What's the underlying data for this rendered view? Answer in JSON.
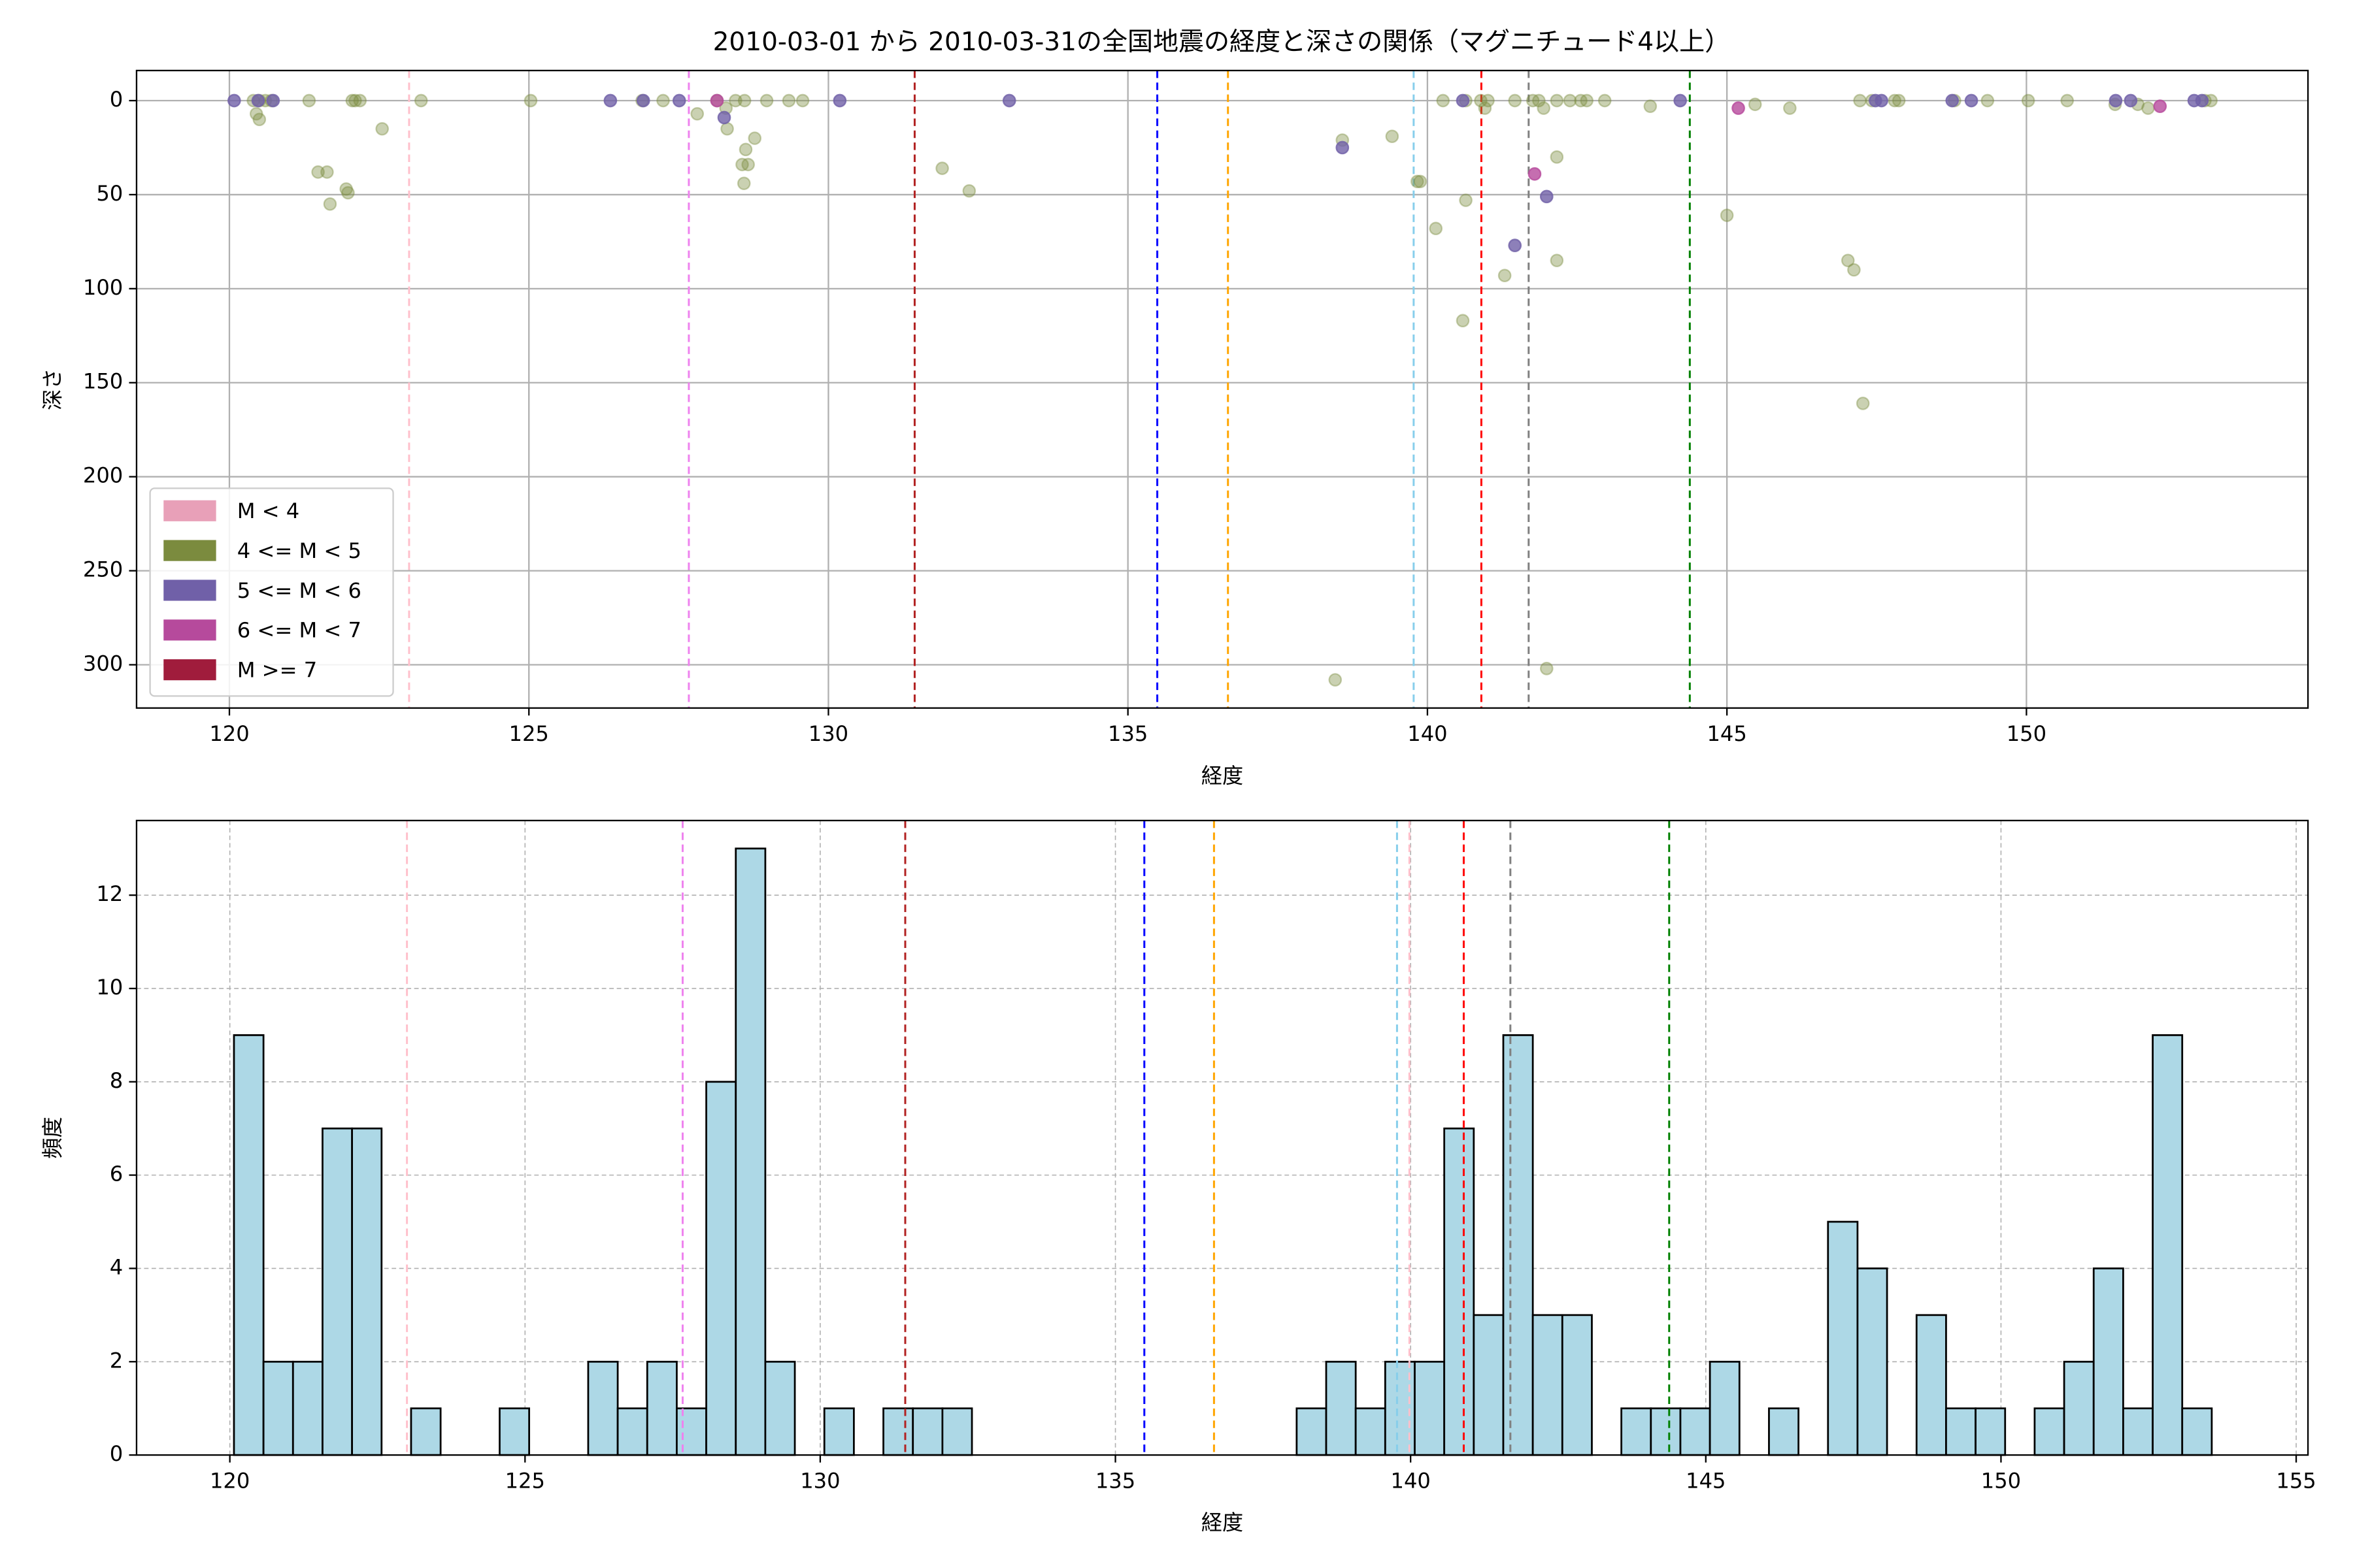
{
  "chart_data": [
    {
      "type": "scatter",
      "title": "2010-03-01 から 2010-03-31の全国地震の経度と深さの関係（マグニチュード4以上）",
      "xlabel": "経度",
      "ylabel": "深さ",
      "xlim": [
        118.45,
        154.7
      ],
      "ylim": [
        323,
        -16
      ],
      "xticks": [
        120,
        125,
        130,
        135,
        140,
        145,
        150
      ],
      "yticks": [
        0,
        50,
        100,
        150,
        200,
        250,
        300
      ],
      "grid": true,
      "legend": "lower left",
      "vlines": [
        {
          "x": 123.0,
          "color": "pink"
        },
        {
          "x": 127.67,
          "color": "violet"
        },
        {
          "x": 131.44,
          "color": "#b22222"
        },
        {
          "x": 135.49,
          "color": "blue"
        },
        {
          "x": 136.67,
          "color": "orange"
        },
        {
          "x": 139.77,
          "color": "skyblue"
        },
        {
          "x": 140.9,
          "color": "red"
        },
        {
          "x": 141.69,
          "color": "gray"
        },
        {
          "x": 144.38,
          "color": "green"
        }
      ],
      "series": [
        {
          "name": "M < 4",
          "color": "#e8a0b8",
          "alpha": 0.8,
          "x": [],
          "y": []
        },
        {
          "name": "4 <= M < 5",
          "color": "#7b8b3e",
          "alpha": 0.4,
          "x": [
            120.4,
            120.5,
            120.6,
            120.7,
            120.45,
            120.5,
            121.33,
            121.48,
            121.63,
            121.68,
            121.95,
            121.98,
            122.05,
            122.1,
            122.18,
            122.55,
            123.2,
            125.03,
            126.89,
            127.24,
            127.81,
            128.14,
            128.29,
            128.31,
            128.45,
            128.6,
            128.56,
            128.62,
            128.66,
            128.59,
            128.77,
            128.97,
            129.34,
            129.57,
            131.9,
            132.35,
            138.58,
            138.46,
            139.41,
            139.83,
            139.88,
            140.14,
            140.26,
            140.59,
            140.64,
            140.64,
            140.89,
            140.96,
            141.01,
            141.29,
            141.46,
            141.76,
            141.86,
            141.94,
            141.99,
            142.16,
            142.16,
            142.16,
            142.38,
            142.56,
            142.66,
            142.96,
            143.72,
            145.0,
            145.47,
            146.05,
            147.02,
            147.12,
            147.22,
            147.27,
            147.42,
            147.8,
            147.87,
            148.8,
            149.35,
            150.03,
            150.68,
            151.48,
            151.86,
            152.03,
            152.98,
            153.08
          ],
          "y": [
            0,
            0,
            0,
            0,
            7,
            10,
            0,
            38,
            38,
            55,
            47,
            49,
            0,
            0,
            0,
            15,
            0,
            0,
            0,
            0,
            7,
            0,
            4,
            15,
            0,
            0,
            34,
            26,
            34,
            44,
            20,
            0,
            0,
            0,
            36,
            48,
            21,
            308,
            19,
            43,
            43,
            68,
            0,
            117,
            53,
            0,
            0,
            4,
            0,
            93,
            0,
            0,
            0,
            4,
            302,
            30,
            85,
            0,
            0,
            0,
            0,
            0,
            3,
            61,
            2,
            4,
            85,
            90,
            0,
            161,
            0,
            0,
            0,
            0,
            0,
            0,
            0,
            2,
            2,
            4,
            0,
            0
          ]
        },
        {
          "name": "5 <= M < 6",
          "color": "#7060a8",
          "alpha": 0.8,
          "x": [
            120.08,
            120.48,
            120.73,
            126.36,
            126.91,
            127.51,
            128.26,
            130.19,
            133.02,
            138.58,
            140.59,
            141.46,
            141.99,
            144.22,
            147.48,
            147.58,
            148.76,
            149.08,
            151.49,
            151.74,
            152.8,
            152.93
          ],
          "y": [
            0,
            0,
            0,
            0,
            0,
            0,
            9,
            0,
            0,
            25,
            0,
            77,
            51,
            0,
            0,
            0,
            0,
            0,
            0,
            0,
            0,
            0
          ]
        },
        {
          "name": "6 <= M < 7",
          "color": "#b64a9c",
          "alpha": 0.8,
          "x": [
            128.14,
            141.79,
            145.19,
            152.23
          ],
          "y": [
            0,
            39,
            4,
            3
          ]
        },
        {
          "name": "M >= 7",
          "color": "#a01c3c",
          "alpha": 0.8,
          "x": [],
          "y": []
        }
      ]
    },
    {
      "type": "histogram",
      "xlabel": "経度",
      "ylabel": "頻度",
      "xlim": [
        118.42,
        155.2
      ],
      "ylim": [
        0,
        13.6
      ],
      "xticks": [
        120,
        125,
        130,
        135,
        140,
        145,
        150,
        155
      ],
      "yticks": [
        0,
        2,
        4,
        6,
        8,
        10,
        12
      ],
      "grid": true,
      "color": "lightblue",
      "edgecolor": "black",
      "vlines": [
        {
          "x": 123.0,
          "color": "pink"
        },
        {
          "x": 127.67,
          "color": "violet"
        },
        {
          "x": 131.44,
          "color": "#b22222"
        },
        {
          "x": 135.49,
          "color": "blue"
        },
        {
          "x": 136.67,
          "color": "orange"
        },
        {
          "x": 139.77,
          "color": "skyblue"
        },
        {
          "x": 139.98,
          "color": "pink"
        },
        {
          "x": 140.9,
          "color": "red"
        },
        {
          "x": 141.69,
          "color": "gray"
        },
        {
          "x": 144.38,
          "color": "green"
        }
      ],
      "bins": [
        120.07,
        120.57,
        121.07,
        121.57,
        122.07,
        122.57,
        123.07,
        123.57,
        124.07,
        124.57,
        125.07,
        125.57,
        126.07,
        126.57,
        127.07,
        127.57,
        128.07,
        128.57,
        129.07,
        129.57,
        130.07,
        130.57,
        131.07,
        131.57,
        132.07,
        132.57,
        133.07,
        133.57,
        134.07,
        134.57,
        135.07,
        135.57,
        136.07,
        136.57,
        137.07,
        137.57,
        138.07,
        138.57,
        139.07,
        139.57,
        140.07,
        140.57,
        141.07,
        141.57,
        142.07,
        142.57,
        143.07,
        143.57,
        144.07,
        144.57,
        145.07,
        145.57,
        146.07,
        146.57,
        147.07,
        147.57,
        148.07,
        148.57,
        149.07,
        149.57,
        150.07,
        150.57,
        151.07,
        151.57,
        152.07,
        152.57,
        153.07,
        153.57
      ],
      "values": [
        9,
        2,
        2,
        7,
        7,
        0,
        1,
        0,
        0,
        1,
        0,
        0,
        2,
        1,
        2,
        1,
        8,
        13,
        2,
        0,
        1,
        0,
        1,
        1,
        1,
        0,
        0,
        0,
        0,
        0,
        0,
        0,
        0,
        0,
        0,
        0,
        1,
        2,
        1,
        2,
        2,
        7,
        3,
        9,
        3,
        3,
        0,
        1,
        1,
        1,
        2,
        0,
        1,
        0,
        5,
        4,
        0,
        3,
        1,
        1,
        0,
        1,
        2,
        4,
        1,
        9,
        1
      ]
    }
  ]
}
